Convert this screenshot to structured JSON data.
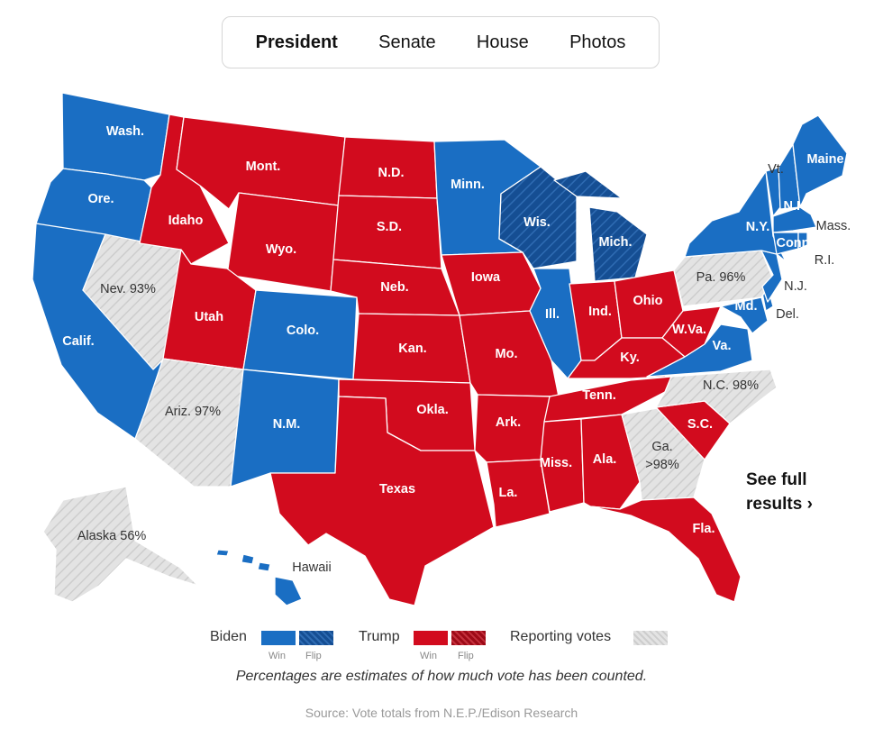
{
  "nav": {
    "tabs": [
      {
        "label": "President",
        "active": true
      },
      {
        "label": "Senate",
        "active": false
      },
      {
        "label": "House",
        "active": false
      },
      {
        "label": "Photos",
        "active": false
      }
    ]
  },
  "colors": {
    "biden": "#1a6ec3",
    "biden_flip": "#154e93",
    "trump": "#d20b1e",
    "trump_flip": "#9d0a17",
    "reporting": "#e1e1e1",
    "hatch": "#cfcfcf",
    "border": "#ffffff"
  },
  "map": {
    "states": [
      {
        "id": "WA",
        "label": "Wash.",
        "status": "biden"
      },
      {
        "id": "OR",
        "label": "Ore.",
        "status": "biden"
      },
      {
        "id": "CA",
        "label": "Calif.",
        "status": "biden"
      },
      {
        "id": "NV",
        "label": "Nev. 93%",
        "status": "reporting"
      },
      {
        "id": "ID",
        "label": "Idaho",
        "status": "trump"
      },
      {
        "id": "MT",
        "label": "Mont.",
        "status": "trump"
      },
      {
        "id": "WY",
        "label": "Wyo.",
        "status": "trump"
      },
      {
        "id": "UT",
        "label": "Utah",
        "status": "trump"
      },
      {
        "id": "AZ",
        "label": "Ariz. 97%",
        "status": "reporting"
      },
      {
        "id": "CO",
        "label": "Colo.",
        "status": "biden"
      },
      {
        "id": "NM",
        "label": "N.M.",
        "status": "biden"
      },
      {
        "id": "ND",
        "label": "N.D.",
        "status": "trump"
      },
      {
        "id": "SD",
        "label": "S.D.",
        "status": "trump"
      },
      {
        "id": "NE",
        "label": "Neb.",
        "status": "trump"
      },
      {
        "id": "KS",
        "label": "Kan.",
        "status": "trump"
      },
      {
        "id": "OK",
        "label": "Okla.",
        "status": "trump"
      },
      {
        "id": "TX",
        "label": "Texas",
        "status": "trump"
      },
      {
        "id": "MN",
        "label": "Minn.",
        "status": "biden"
      },
      {
        "id": "IA",
        "label": "Iowa",
        "status": "trump"
      },
      {
        "id": "MO",
        "label": "Mo.",
        "status": "trump"
      },
      {
        "id": "AR",
        "label": "Ark.",
        "status": "trump"
      },
      {
        "id": "LA",
        "label": "La.",
        "status": "trump"
      },
      {
        "id": "WI",
        "label": "Wis.",
        "status": "biden_flip"
      },
      {
        "id": "IL",
        "label": "Ill.",
        "status": "biden"
      },
      {
        "id": "MI",
        "label": "Mich.",
        "status": "biden_flip"
      },
      {
        "id": "IN",
        "label": "Ind.",
        "status": "trump"
      },
      {
        "id": "OH",
        "label": "Ohio",
        "status": "trump"
      },
      {
        "id": "KY",
        "label": "Ky.",
        "status": "trump"
      },
      {
        "id": "TN",
        "label": "Tenn.",
        "status": "trump"
      },
      {
        "id": "MS",
        "label": "Miss.",
        "status": "trump"
      },
      {
        "id": "AL",
        "label": "Ala.",
        "status": "trump"
      },
      {
        "id": "GA",
        "label": "Ga.",
        "sublabel": ">98%",
        "status": "reporting"
      },
      {
        "id": "FL",
        "label": "Fla.",
        "status": "trump"
      },
      {
        "id": "SC",
        "label": "S.C.",
        "status": "trump"
      },
      {
        "id": "NC",
        "label": "N.C. 98%",
        "status": "reporting"
      },
      {
        "id": "VA",
        "label": "Va.",
        "status": "biden"
      },
      {
        "id": "WV",
        "label": "W.Va.",
        "status": "trump"
      },
      {
        "id": "PA",
        "label": "Pa. 96%",
        "status": "reporting"
      },
      {
        "id": "NY",
        "label": "N.Y.",
        "status": "biden"
      },
      {
        "id": "VT",
        "label": "Vt.",
        "status": "biden"
      },
      {
        "id": "NH",
        "label": "N.H",
        "status": "biden"
      },
      {
        "id": "ME",
        "label": "Maine",
        "status": "biden"
      },
      {
        "id": "MA",
        "label": "Mass.",
        "status": "biden"
      },
      {
        "id": "RI",
        "label": "R.I.",
        "status": "biden"
      },
      {
        "id": "CT",
        "label": "Conn",
        "status": "biden"
      },
      {
        "id": "NJ",
        "label": "N.J.",
        "status": "biden"
      },
      {
        "id": "DE",
        "label": "Del.",
        "status": "biden"
      },
      {
        "id": "MD",
        "label": "Md.",
        "status": "biden"
      },
      {
        "id": "AK",
        "label": "Alaska 56%",
        "status": "reporting"
      },
      {
        "id": "HI",
        "label": "Hawaii",
        "status": "biden"
      }
    ]
  },
  "cta": {
    "line1": "See full",
    "line2": "results ›"
  },
  "legend": {
    "biden": "Biden",
    "trump": "Trump",
    "reporting": "Reporting votes",
    "win": "Win",
    "flip": "Flip"
  },
  "note": "Percentages are estimates of how much vote has been counted.",
  "source": "Source: Vote totals from N.E.P./Edison Research"
}
